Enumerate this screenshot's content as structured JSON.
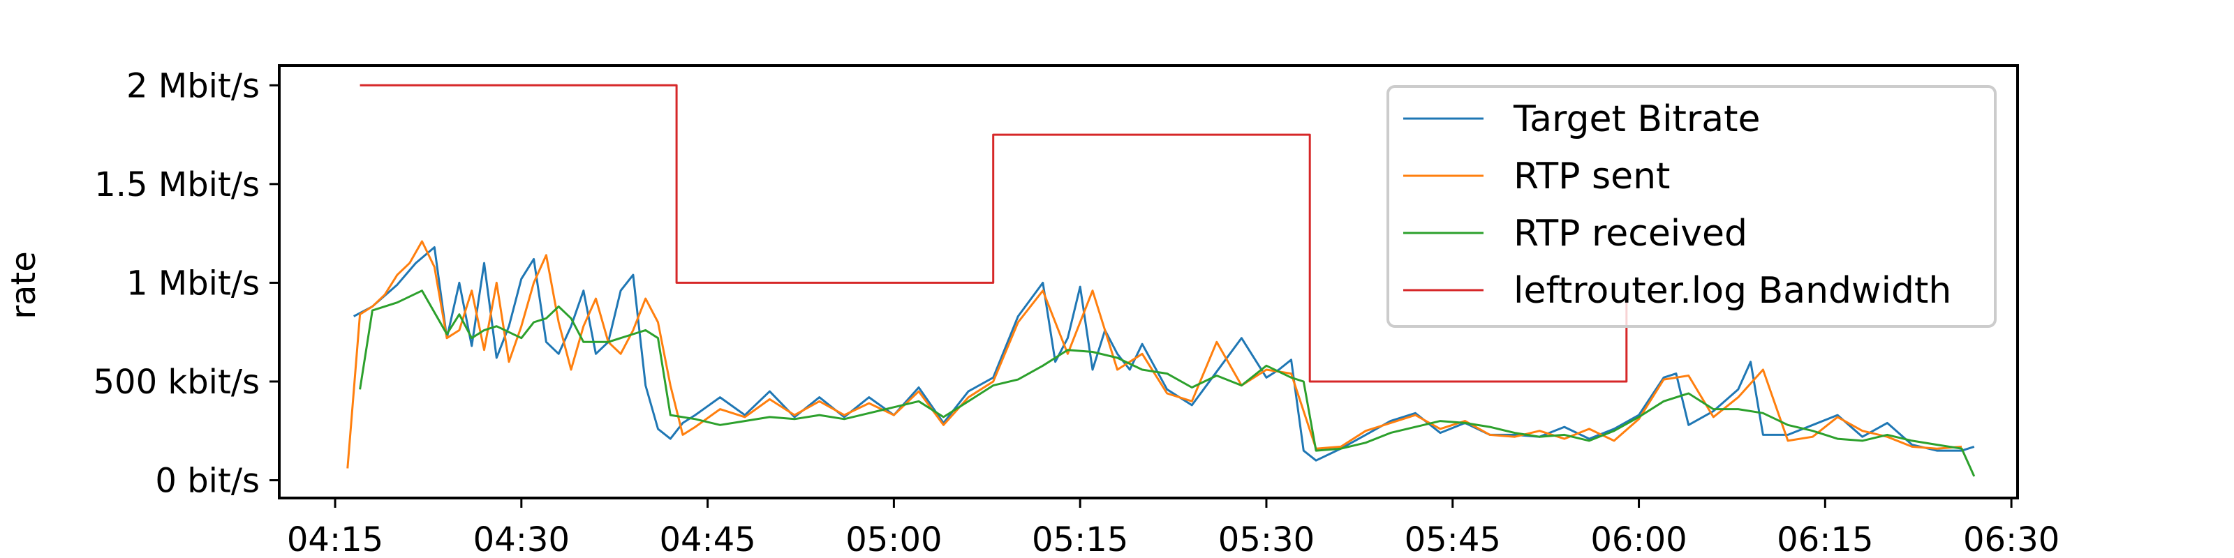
{
  "chart_data": {
    "type": "line",
    "title": "",
    "xlabel": "",
    "ylabel": "rate",
    "x_unit": "time (hh:mm)",
    "xlim": [
      "04:10:30",
      "06:30:30"
    ],
    "ylim": [
      -90000,
      2100000
    ],
    "x_ticks": [
      "04:15",
      "04:30",
      "04:45",
      "05:00",
      "05:15",
      "05:30",
      "05:45",
      "06:00",
      "06:15",
      "06:30"
    ],
    "y_ticks": [
      {
        "value": 0,
        "label": "0 bit/s"
      },
      {
        "value": 500000,
        "label": "500 kbit/s"
      },
      {
        "value": 1000000,
        "label": "1 Mbit/s"
      },
      {
        "value": 1500000,
        "label": "1.5 Mbit/s"
      },
      {
        "value": 2000000,
        "label": "2 Mbit/s"
      }
    ],
    "grid": false,
    "legend_position": "top-right",
    "series": [
      {
        "name": "Target Bitrate",
        "color": "#1f77b4",
        "x": [
          "04:16:30",
          "04:18:00",
          "04:20:00",
          "04:21:30",
          "04:23:00",
          "04:24:00",
          "04:25:00",
          "04:26:00",
          "04:27:00",
          "04:28:00",
          "04:29:00",
          "04:30:00",
          "04:31:00",
          "04:32:00",
          "04:33:00",
          "04:34:00",
          "04:35:00",
          "04:36:00",
          "04:37:00",
          "04:38:00",
          "04:39:00",
          "04:40:00",
          "04:41:00",
          "04:42:00",
          "04:43:00",
          "04:44:00",
          "04:46:00",
          "04:48:00",
          "04:50:00",
          "04:52:00",
          "04:54:00",
          "04:56:00",
          "04:58:00",
          "05:00:00",
          "05:02:00",
          "05:04:00",
          "05:06:00",
          "05:08:00",
          "05:10:00",
          "05:12:00",
          "05:13:00",
          "05:14:00",
          "05:15:00",
          "05:16:00",
          "05:17:00",
          "05:18:00",
          "05:19:00",
          "05:20:00",
          "05:22:00",
          "05:24:00",
          "05:26:00",
          "05:28:00",
          "05:30:00",
          "05:31:00",
          "05:32:00",
          "05:33:00",
          "05:34:00",
          "05:36:00",
          "05:38:00",
          "05:40:00",
          "05:42:00",
          "05:44:00",
          "05:46:00",
          "05:48:00",
          "05:50:00",
          "05:52:00",
          "05:54:00",
          "05:56:00",
          "05:58:00",
          "06:00:00",
          "06:02:00",
          "06:03:00",
          "06:04:00",
          "06:06:00",
          "06:08:00",
          "06:09:00",
          "06:10:00",
          "06:12:00",
          "06:14:00",
          "06:16:00",
          "06:18:00",
          "06:20:00",
          "06:22:00",
          "06:24:00",
          "06:26:00",
          "06:27:00"
        ],
        "values": [
          830000,
          880000,
          990000,
          1100000,
          1180000,
          720000,
          1000000,
          680000,
          1100000,
          620000,
          780000,
          1020000,
          1120000,
          700000,
          640000,
          780000,
          960000,
          640000,
          700000,
          960000,
          1040000,
          480000,
          260000,
          210000,
          290000,
          330000,
          420000,
          330000,
          450000,
          320000,
          420000,
          320000,
          420000,
          330000,
          470000,
          290000,
          450000,
          520000,
          830000,
          1000000,
          600000,
          720000,
          980000,
          560000,
          760000,
          640000,
          560000,
          690000,
          460000,
          380000,
          550000,
          720000,
          520000,
          560000,
          610000,
          150000,
          100000,
          160000,
          230000,
          300000,
          340000,
          240000,
          290000,
          230000,
          230000,
          220000,
          270000,
          210000,
          260000,
          330000,
          520000,
          540000,
          280000,
          350000,
          460000,
          600000,
          230000,
          230000,
          280000,
          330000,
          220000,
          290000,
          180000,
          150000,
          150000,
          170000
        ]
      },
      {
        "name": "RTP sent",
        "color": "#ff7f0e",
        "x": [
          "04:16:00",
          "04:17:00",
          "04:18:00",
          "04:19:00",
          "04:20:00",
          "04:21:00",
          "04:22:00",
          "04:23:00",
          "04:24:00",
          "04:25:00",
          "04:26:00",
          "04:27:00",
          "04:28:00",
          "04:29:00",
          "04:30:00",
          "04:31:00",
          "04:32:00",
          "04:33:00",
          "04:34:00",
          "04:35:00",
          "04:36:00",
          "04:37:00",
          "04:38:00",
          "04:39:00",
          "04:40:00",
          "04:41:00",
          "04:42:00",
          "04:43:00",
          "04:44:00",
          "04:46:00",
          "04:48:00",
          "04:50:00",
          "04:52:00",
          "04:54:00",
          "04:56:00",
          "04:58:00",
          "05:00:00",
          "05:02:00",
          "05:04:00",
          "05:06:00",
          "05:08:00",
          "05:10:00",
          "05:12:00",
          "05:14:00",
          "05:16:00",
          "05:18:00",
          "05:20:00",
          "05:22:00",
          "05:24:00",
          "05:26:00",
          "05:28:00",
          "05:30:00",
          "05:32:00",
          "05:34:00",
          "05:36:00",
          "05:38:00",
          "05:40:00",
          "05:42:00",
          "05:44:00",
          "05:46:00",
          "05:48:00",
          "05:50:00",
          "05:52:00",
          "05:54:00",
          "05:56:00",
          "05:58:00",
          "06:00:00",
          "06:02:00",
          "06:04:00",
          "06:06:00",
          "06:08:00",
          "06:10:00",
          "06:12:00",
          "06:14:00",
          "06:16:00",
          "06:18:00",
          "06:20:00",
          "06:22:00",
          "06:24:00",
          "06:26:00"
        ],
        "values": [
          60000,
          840000,
          880000,
          940000,
          1040000,
          1100000,
          1210000,
          1080000,
          720000,
          760000,
          960000,
          660000,
          1000000,
          600000,
          780000,
          1000000,
          1140000,
          800000,
          560000,
          780000,
          920000,
          700000,
          640000,
          760000,
          920000,
          800000,
          480000,
          230000,
          270000,
          360000,
          320000,
          410000,
          330000,
          400000,
          330000,
          390000,
          330000,
          450000,
          280000,
          420000,
          500000,
          800000,
          960000,
          640000,
          960000,
          560000,
          640000,
          440000,
          400000,
          700000,
          480000,
          560000,
          540000,
          160000,
          170000,
          250000,
          290000,
          330000,
          260000,
          300000,
          230000,
          220000,
          250000,
          210000,
          260000,
          200000,
          310000,
          510000,
          530000,
          320000,
          420000,
          560000,
          200000,
          220000,
          320000,
          250000,
          220000,
          170000,
          160000,
          170000
        ]
      },
      {
        "name": "RTP received",
        "color": "#2ca02c",
        "x": [
          "04:17:00",
          "04:18:00",
          "04:20:00",
          "04:22:00",
          "04:24:00",
          "04:25:00",
          "04:26:00",
          "04:27:00",
          "04:28:00",
          "04:30:00",
          "04:31:00",
          "04:32:00",
          "04:33:00",
          "04:34:00",
          "04:35:00",
          "04:37:00",
          "04:39:00",
          "04:40:00",
          "04:41:00",
          "04:42:00",
          "04:44:00",
          "04:46:00",
          "04:48:00",
          "04:50:00",
          "04:52:00",
          "04:54:00",
          "04:56:00",
          "04:58:00",
          "05:00:00",
          "05:02:00",
          "05:04:00",
          "05:06:00",
          "05:08:00",
          "05:10:00",
          "05:12:00",
          "05:14:00",
          "05:16:00",
          "05:18:00",
          "05:20:00",
          "05:22:00",
          "05:24:00",
          "05:26:00",
          "05:28:00",
          "05:30:00",
          "05:32:00",
          "05:33:00",
          "05:34:00",
          "05:36:00",
          "05:38:00",
          "05:40:00",
          "05:42:00",
          "05:44:00",
          "05:46:00",
          "05:48:00",
          "05:50:00",
          "05:52:00",
          "05:54:00",
          "05:56:00",
          "05:58:00",
          "06:00:00",
          "06:02:00",
          "06:04:00",
          "06:06:00",
          "06:08:00",
          "06:10:00",
          "06:12:00",
          "06:14:00",
          "06:16:00",
          "06:18:00",
          "06:20:00",
          "06:22:00",
          "06:24:00",
          "06:26:00",
          "06:27:00"
        ],
        "values": [
          460000,
          860000,
          900000,
          960000,
          740000,
          840000,
          720000,
          760000,
          780000,
          720000,
          800000,
          820000,
          880000,
          820000,
          700000,
          700000,
          740000,
          760000,
          720000,
          330000,
          310000,
          280000,
          300000,
          320000,
          310000,
          330000,
          310000,
          340000,
          370000,
          400000,
          320000,
          400000,
          480000,
          510000,
          580000,
          660000,
          650000,
          620000,
          560000,
          540000,
          470000,
          530000,
          480000,
          580000,
          520000,
          500000,
          150000,
          160000,
          190000,
          240000,
          270000,
          300000,
          290000,
          270000,
          240000,
          220000,
          230000,
          200000,
          250000,
          320000,
          400000,
          440000,
          360000,
          360000,
          340000,
          280000,
          250000,
          210000,
          200000,
          230000,
          200000,
          180000,
          160000,
          20000
        ]
      },
      {
        "name": "leftrouter.log Bandwidth",
        "color": "#d62728",
        "step": true,
        "x": [
          "04:17:00",
          "04:42:30",
          "04:42:30",
          "05:08:00",
          "05:08:00",
          "05:33:30",
          "05:33:30",
          "05:59:00",
          "05:59:00"
        ],
        "values": [
          2000000,
          2000000,
          1000000,
          1000000,
          1750000,
          1750000,
          500000,
          500000,
          1000000
        ]
      }
    ]
  }
}
